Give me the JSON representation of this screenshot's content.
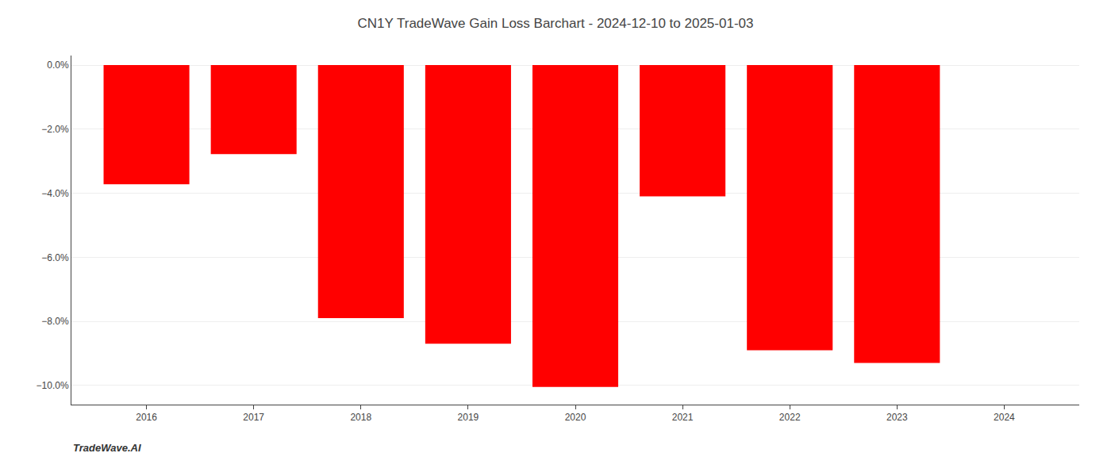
{
  "chart_data": {
    "type": "bar",
    "title": "CN1Y TradeWave Gain Loss Barchart - 2024-12-10 to 2025-01-03",
    "annotations": [
      "TradeWave.AI"
    ],
    "x": [
      2016,
      2017,
      2018,
      2019,
      2020,
      2021,
      2022,
      2023,
      2024
    ],
    "values": [
      -3.72,
      -2.78,
      -7.9,
      -8.7,
      -10.05,
      -4.1,
      -8.9,
      -9.3,
      0.0
    ],
    "color": "#ff0000",
    "xlim": [
      2015.3,
      2024.7
    ],
    "xticks": [
      2016,
      2017,
      2018,
      2019,
      2020,
      2021,
      2022,
      2023,
      2024
    ],
    "ylim": [
      -10.6,
      0.3
    ],
    "yticks": [
      {
        "value": 0.0,
        "label": "0.0%"
      },
      {
        "value": -2.0,
        "label": "−2.0%"
      },
      {
        "value": -4.0,
        "label": "−4.0%"
      },
      {
        "value": -6.0,
        "label": "−6.0%"
      },
      {
        "value": -8.0,
        "label": "−8.0%"
      },
      {
        "value": -10.0,
        "label": "−10.0%"
      }
    ],
    "grid": true
  }
}
